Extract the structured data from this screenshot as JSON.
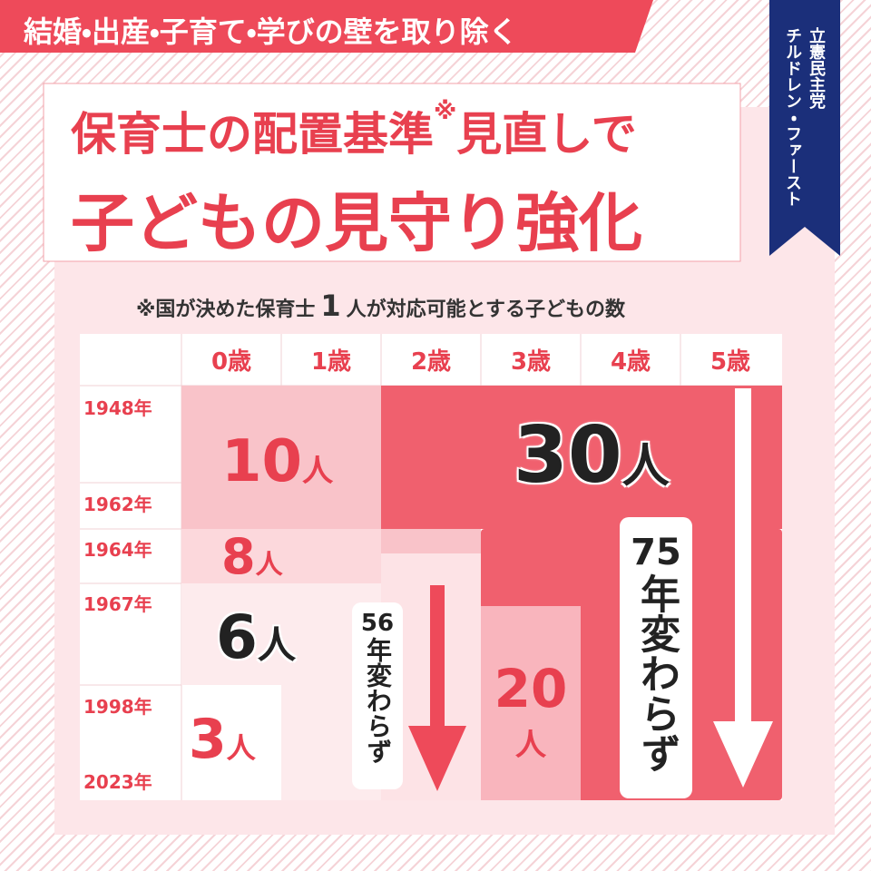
{
  "banner": "結婚・出産・子育て・学びの壁を取り除く",
  "ribbon": {
    "party": "立憲民主党",
    "slogan": "チルドレン・ファースト"
  },
  "title": {
    "line1": "保育士の配置基準",
    "mark": "※",
    "line1_end": "見直しで",
    "line2": "子どもの見守り強化"
  },
  "note": {
    "before": "※国が決めた保育士",
    "number": "1",
    "after": "人が対応可能とする子どもの数"
  },
  "table": {
    "columns": [
      "0歳",
      "1歳",
      "2歳",
      "3歳",
      "4歳",
      "5歳"
    ],
    "years": [
      "1948年",
      "1962年",
      "1964年",
      "1967年",
      "1998年",
      "2023年"
    ],
    "cells": [
      {
        "count": "10",
        "unit": "人"
      },
      {
        "count": "30",
        "unit": "人"
      },
      {
        "count": "8",
        "unit": "人"
      },
      {
        "count": "6",
        "unit": "人"
      },
      {
        "count": "3",
        "unit": "人"
      },
      {
        "count": "20",
        "unit": "人"
      }
    ]
  },
  "annotations": [
    {
      "years": "56",
      "text": "年変わらず"
    },
    {
      "years": "75",
      "text": "年変わらず"
    }
  ]
}
